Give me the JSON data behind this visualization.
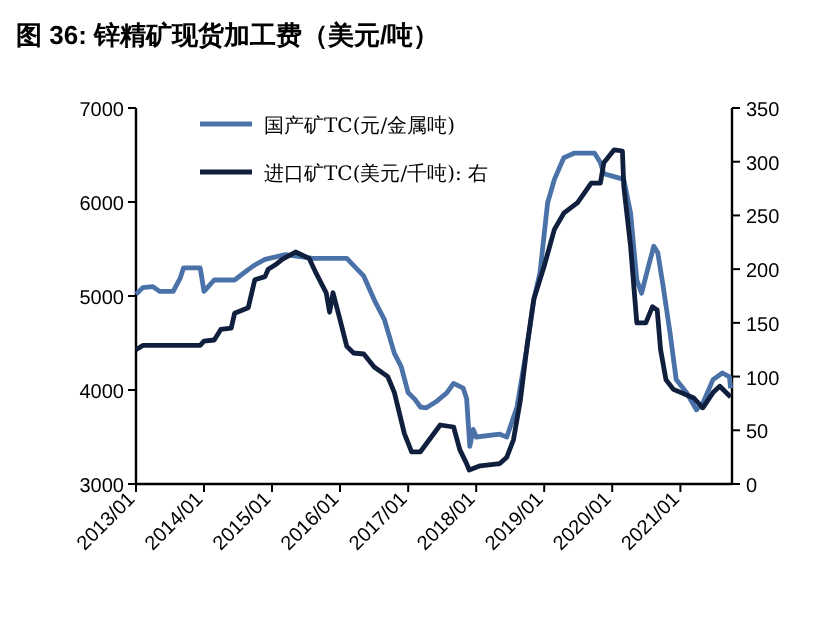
{
  "chart_data": {
    "type": "line",
    "title": "图 36: 锌精矿现货加工费（美元/吨）",
    "xlim": [
      "2013-01-01",
      "2021-10-05"
    ],
    "xticks": [
      {
        "value": "2013-01-01",
        "label": "2013/01"
      },
      {
        "value": "2014-01-01",
        "label": "2014/01"
      },
      {
        "value": "2015-01-01",
        "label": "2015/01"
      },
      {
        "value": "2016-01-01",
        "label": "2016/01"
      },
      {
        "value": "2017-01-01",
        "label": "2017/01"
      },
      {
        "value": "2018-01-01",
        "label": "2018/01"
      },
      {
        "value": "2019-01-01",
        "label": "2019/01"
      },
      {
        "value": "2020-01-01",
        "label": "2020/01"
      },
      {
        "value": "2021-01-01",
        "label": "2021/01"
      }
    ],
    "ylim": [
      3000,
      7000
    ],
    "yticks": [
      3000,
      4000,
      5000,
      6000,
      7000
    ],
    "y2lim": [
      0,
      350
    ],
    "y2ticks": [
      0,
      50,
      100,
      150,
      200,
      250,
      300,
      350
    ],
    "grid": false,
    "legend": "top",
    "line_style": "solid",
    "marker": "none",
    "series": [
      {
        "name": "国产矿TC(元/金属吨)",
        "color": "#4a72a8",
        "x": [
          "2013-01-01",
          "2013-02-06",
          "2013-04-01",
          "2013-05-08",
          "2013-07-20",
          "2013-08-26",
          "2013-09-13",
          "2013-12-12",
          "2014-01-01",
          "2014-01-19",
          "2014-02-25",
          "2014-06-14",
          "2014-08-26",
          "2014-10-01",
          "2014-11-24",
          "2015-03-14",
          "2015-08-08",
          "2016-02-06",
          "2016-05-08",
          "2016-07-02",
          "2016-08-26",
          "2016-10-19",
          "2016-11-24",
          "2017-01-01",
          "2017-02-06",
          "2017-03-07",
          "2017-04-09",
          "2017-06-03",
          "2017-07-27",
          "2017-09-02",
          "2017-10-23",
          "2017-11-10",
          "2017-11-28",
          "2017-12-16",
          "2018-01-01",
          "2018-05-08",
          "2018-06-14",
          "2018-08-08",
          "2018-10-01",
          "2018-11-06",
          "2018-12-09",
          "2019-01-19",
          "2019-02-25",
          "2019-04-16",
          "2019-06-10",
          "2019-09-28",
          "2019-10-30",
          "2019-11-17",
          "2019-12-23",
          "2020-03-03",
          "2020-04-09",
          "2020-05-12",
          "2020-06-07",
          "2020-07-05",
          "2020-08-11",
          "2020-09-02",
          "2020-10-01",
          "2020-11-06",
          "2020-12-09",
          "2021-02-03",
          "2021-03-28",
          "2021-05-01",
          "2021-06-25",
          "2021-08-15",
          "2021-09-21",
          "2021-09-28"
        ],
        "values": [
          5020,
          5090,
          5100,
          5050,
          5050,
          5190,
          5300,
          5300,
          5050,
          5090,
          5170,
          5170,
          5280,
          5330,
          5390,
          5440,
          5400,
          5400,
          5210,
          4960,
          4750,
          4390,
          4250,
          3970,
          3900,
          3820,
          3810,
          3880,
          3970,
          4070,
          4020,
          3910,
          3400,
          3580,
          3500,
          3530,
          3500,
          3820,
          4460,
          4960,
          5250,
          5990,
          6240,
          6470,
          6520,
          6520,
          6420,
          6300,
          6280,
          6240,
          5880,
          5170,
          5030,
          5250,
          5530,
          5460,
          5100,
          4610,
          4110,
          3970,
          3790,
          3860,
          4110,
          4180,
          4140,
          4020
        ]
      },
      {
        "name": "进口矿TC(美元/千吨): 右",
        "color": "#0f1f3d",
        "axis": "y2",
        "x": [
          "2013-01-01",
          "2013-02-06",
          "2013-12-12",
          "2014-01-01",
          "2014-02-25",
          "2014-04-01",
          "2014-05-27",
          "2014-06-14",
          "2014-08-26",
          "2014-10-01",
          "2014-11-24",
          "2014-12-12",
          "2015-01-19",
          "2015-02-25",
          "2015-05-08",
          "2015-07-20",
          "2015-08-26",
          "2015-10-19",
          "2015-11-06",
          "2015-11-24",
          "2016-01-01",
          "2016-02-06",
          "2016-03-14",
          "2016-05-08",
          "2016-07-02",
          "2016-09-13",
          "2016-10-19",
          "2016-12-12",
          "2017-01-19",
          "2017-03-07",
          "2017-06-22",
          "2017-09-02",
          "2017-10-05",
          "2017-11-10",
          "2017-11-24",
          "2018-01-23",
          "2018-05-08",
          "2018-06-14",
          "2018-07-20",
          "2018-08-26",
          "2018-10-01",
          "2018-11-06",
          "2019-01-01",
          "2019-02-25",
          "2019-04-16",
          "2019-06-29",
          "2019-09-10",
          "2019-10-30",
          "2019-11-17",
          "2020-01-12",
          "2020-02-25",
          "2020-03-03",
          "2020-04-09",
          "2020-05-12",
          "2020-06-29",
          "2020-08-04",
          "2020-08-30",
          "2020-09-17",
          "2020-10-16",
          "2020-11-24",
          "2021-03-14",
          "2021-05-01",
          "2021-06-25",
          "2021-08-01",
          "2021-09-28"
        ],
        "values": [
          125,
          129,
          129,
          133,
          134,
          144,
          145,
          159,
          164,
          190,
          193,
          200,
          204,
          209,
          216,
          210,
          196,
          178,
          160,
          178,
          153,
          128,
          122,
          121,
          109,
          100,
          85,
          47,
          30,
          30,
          55,
          53,
          32,
          19,
          13,
          17,
          19,
          25,
          41,
          78,
          128,
          172,
          203,
          237,
          252,
          262,
          280,
          280,
          299,
          311,
          310,
          277,
          221,
          150,
          150,
          165,
          162,
          125,
          97,
          88,
          80,
          71,
          85,
          91,
          81
        ]
      }
    ]
  }
}
